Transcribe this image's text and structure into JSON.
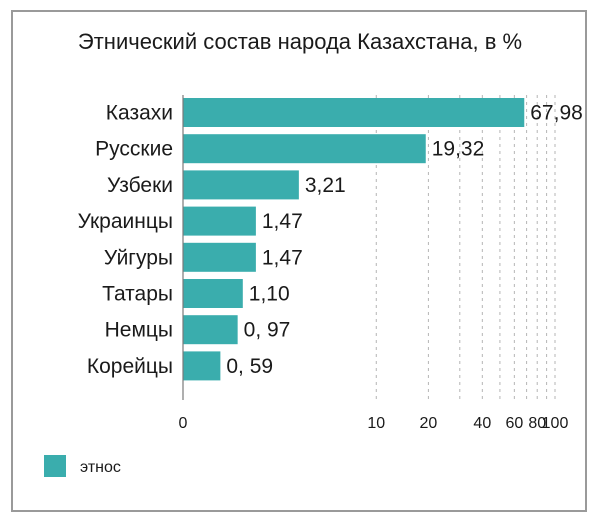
{
  "chart_data": {
    "type": "bar",
    "orientation": "horizontal",
    "title": "Этнический состав народа Казахстана, в %",
    "categories": [
      "Казахи",
      "Русские",
      "Узбеки",
      "Украинцы",
      "Уйгуры",
      "Татары",
      "Немцы",
      "Корейцы"
    ],
    "values": [
      67.98,
      19.32,
      3.21,
      1.47,
      1.47,
      1.1,
      0.97,
      0.59
    ],
    "value_labels": [
      "67,98",
      "19,32",
      "3,21",
      "1,47",
      "1,47",
      "1,10",
      "0, 97",
      "0, 59"
    ],
    "x_scale": "log",
    "x_ticks": [
      0,
      10,
      20,
      40,
      60,
      80,
      100
    ],
    "x_tick_labels": [
      "0",
      "10",
      "20",
      "40",
      "60",
      "80",
      "100"
    ],
    "xlabel": "",
    "ylabel": "",
    "grid": "vertical dashed",
    "legend": {
      "placement": "bottom-left",
      "entries": [
        "этнос"
      ]
    },
    "colors": {
      "bar": "#3aadad",
      "grid": "#b5b5b5",
      "axis": "#7a7a7a",
      "frame": "#9a9a9a"
    }
  }
}
